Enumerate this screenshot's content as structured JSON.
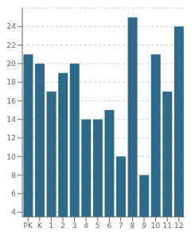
{
  "chart_data": {
    "type": "bar",
    "categories": [
      "PK",
      "K",
      "1",
      "2",
      "3",
      "4",
      "5",
      "6",
      "7",
      "8",
      "9",
      "10",
      "11",
      "12"
    ],
    "values": [
      21,
      20,
      17,
      19,
      20,
      14,
      14,
      15,
      10,
      25,
      8,
      21,
      17,
      24
    ],
    "color": "#2e6a8a",
    "ylim": [
      3.5,
      26
    ],
    "yticks": [
      4,
      6,
      8,
      10,
      12,
      14,
      16,
      18,
      20,
      22,
      24
    ],
    "grid": true
  }
}
